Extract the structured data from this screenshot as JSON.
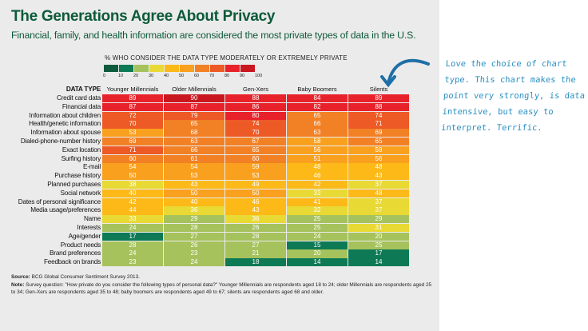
{
  "title": "The Generations Agree About Privacy",
  "subtitle": "Financial, family, and health information are considered the most private types of data in the U.S.",
  "annotation": "Love the choice of chart type.  This chart makes the point very strongly, is data intensive, but easy to interpret. Terrific.",
  "source_label": "Source:",
  "source": "BCG Global Consumer Sentiment Survey 2013.",
  "note_label": "Note:",
  "note": "Survey question: \"How private do you consider the following types of personal data?\" Younger Millennials are respondents aged 18 to 24; older Millennials are respondents aged 25 to 34; Gen-Xers are respondents aged 35 to 48; baby boomers are respondents aged 49 to 67; silents are respondents aged 68 and older.",
  "chart_data": {
    "type": "heatmap",
    "title": "% WHO CONSIDER THE DATA TYPE MODERATELY OR EXTREMELY PRIVATE",
    "row_header": "DATA TYPE",
    "legend_ticks": [
      "0",
      "10",
      "20",
      "30",
      "40",
      "50",
      "60",
      "70",
      "80",
      "90",
      "100"
    ],
    "legend_colors": [
      "#0b5b3c",
      "#0d7a55",
      "#a6c25c",
      "#e9d935",
      "#fcb918",
      "#f9a01e",
      "#f28024",
      "#ed5a26",
      "#e8222b",
      "#c9161f"
    ],
    "columns": [
      "Younger Millennials",
      "Older Millennials",
      "Gen-Xers",
      "Baby Boomers",
      "Silents"
    ],
    "rows": [
      "Credit card data",
      "Financial data",
      "Information about children",
      "Health/genetic information",
      "Information about spouse",
      "Dialed-phone-number history",
      "Exact location",
      "Surfing history",
      "E-mail",
      "Purchase history",
      "Planned purchases",
      "Social network",
      "Dates of personal significance",
      "Media usage/preferences",
      "Name",
      "Interests",
      "Age/gender",
      "Product needs",
      "Brand preferences",
      "Feedback on brands"
    ],
    "values": [
      [
        89,
        90,
        88,
        84,
        89
      ],
      [
        87,
        87,
        86,
        82,
        88
      ],
      [
        72,
        79,
        80,
        65,
        74
      ],
      [
        70,
        65,
        74,
        66,
        71
      ],
      [
        53,
        68,
        70,
        63,
        69
      ],
      [
        69,
        63,
        67,
        58,
        65
      ],
      [
        71,
        66,
        65,
        56,
        59
      ],
      [
        60,
        61,
        60,
        51,
        56
      ],
      [
        54,
        54,
        59,
        48,
        48
      ],
      [
        50,
        53,
        53,
        46,
        43
      ],
      [
        38,
        43,
        49,
        42,
        37
      ],
      [
        40,
        50,
        50,
        33,
        48
      ],
      [
        42,
        40,
        46,
        41,
        37
      ],
      [
        44,
        36,
        43,
        32,
        37
      ],
      [
        33,
        29,
        36,
        25,
        29
      ],
      [
        24,
        28,
        26,
        25,
        31
      ],
      [
        17,
        27,
        28,
        24,
        20
      ],
      [
        28,
        26,
        27,
        15,
        25
      ],
      [
        24,
        23,
        21,
        20,
        17
      ],
      [
        23,
        24,
        18,
        14,
        14
      ]
    ]
  }
}
